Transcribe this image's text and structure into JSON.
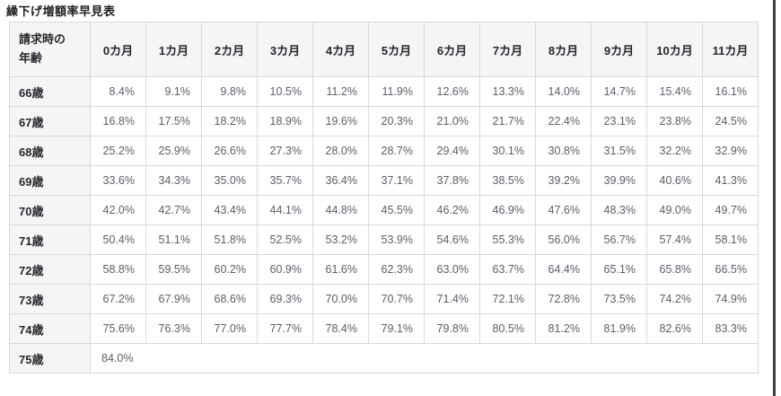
{
  "title": "繰下げ増額率早見表",
  "colors": {
    "header_bg": "#f5f5f6",
    "border": "#d8d8d8",
    "header_text": "#25272c",
    "value_text": "#5c5d66",
    "title_text": "#1d1e20",
    "edge_line": "#3e3e40"
  },
  "chart_data": {
    "type": "table",
    "title": "繰下げ増額率早見表",
    "corner_header_lines": [
      "請求時の",
      "年齢"
    ],
    "column_headers": [
      "0カ月",
      "1カ月",
      "2カ月",
      "3カ月",
      "4カ月",
      "5カ月",
      "6カ月",
      "7カ月",
      "8カ月",
      "9カ月",
      "10カ月",
      "11カ月"
    ],
    "rows": [
      {
        "age": "66歳",
        "values": [
          "8.4%",
          "9.1%",
          "9.8%",
          "10.5%",
          "11.2%",
          "11.9%",
          "12.6%",
          "13.3%",
          "14.0%",
          "14.7%",
          "15.4%",
          "16.1%"
        ]
      },
      {
        "age": "67歳",
        "values": [
          "16.8%",
          "17.5%",
          "18.2%",
          "18.9%",
          "19.6%",
          "20.3%",
          "21.0%",
          "21.7%",
          "22.4%",
          "23.1%",
          "23.8%",
          "24.5%"
        ]
      },
      {
        "age": "68歳",
        "values": [
          "25.2%",
          "25.9%",
          "26.6%",
          "27.3%",
          "28.0%",
          "28.7%",
          "29.4%",
          "30.1%",
          "30.8%",
          "31.5%",
          "32.2%",
          "32.9%"
        ]
      },
      {
        "age": "69歳",
        "values": [
          "33.6%",
          "34.3%",
          "35.0%",
          "35.7%",
          "36.4%",
          "37.1%",
          "37.8%",
          "38.5%",
          "39.2%",
          "39.9%",
          "40.6%",
          "41.3%"
        ]
      },
      {
        "age": "70歳",
        "values": [
          "42.0%",
          "42.7%",
          "43.4%",
          "44.1%",
          "44.8%",
          "45.5%",
          "46.2%",
          "46.9%",
          "47.6%",
          "48.3%",
          "49.0%",
          "49.7%"
        ]
      },
      {
        "age": "71歳",
        "values": [
          "50.4%",
          "51.1%",
          "51.8%",
          "52.5%",
          "53.2%",
          "53.9%",
          "54.6%",
          "55.3%",
          "56.0%",
          "56.7%",
          "57.4%",
          "58.1%"
        ]
      },
      {
        "age": "72歳",
        "values": [
          "58.8%",
          "59.5%",
          "60.2%",
          "60.9%",
          "61.6%",
          "62.3%",
          "63.0%",
          "63.7%",
          "64.4%",
          "65.1%",
          "65.8%",
          "66.5%"
        ]
      },
      {
        "age": "73歳",
        "values": [
          "67.2%",
          "67.9%",
          "68.6%",
          "69.3%",
          "70.0%",
          "70.7%",
          "71.4%",
          "72.1%",
          "72.8%",
          "73.5%",
          "74.2%",
          "74.9%"
        ]
      },
      {
        "age": "74歳",
        "values": [
          "75.6%",
          "76.3%",
          "77.0%",
          "77.7%",
          "78.4%",
          "79.1%",
          "79.8%",
          "80.5%",
          "81.2%",
          "81.9%",
          "82.6%",
          "83.3%"
        ]
      },
      {
        "age": "75歳",
        "values": [
          "84.0%"
        ]
      }
    ]
  }
}
